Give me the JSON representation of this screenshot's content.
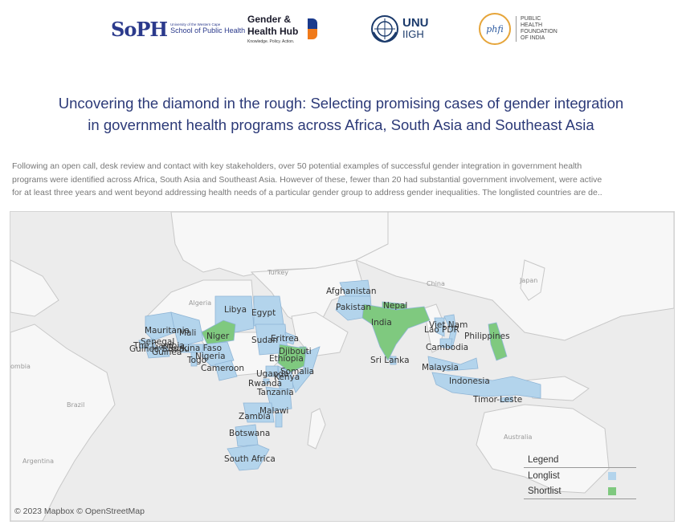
{
  "logos": {
    "soph": {
      "mark": "SoPH",
      "line1": "University of the Western Cape",
      "line2": "School of Public Health"
    },
    "ghh": {
      "line1": "Gender &",
      "line2": "Health Hub",
      "tagline": "Knowledge. Policy. Action."
    },
    "unu": {
      "line1": "UNU",
      "line2": "IIGH"
    },
    "phfi": {
      "mark": "phfi",
      "line1": "PUBLIC",
      "line2": "HEALTH",
      "line3": "FOUNDATION",
      "line4": "OF INDIA"
    }
  },
  "title": {
    "line1": "Uncovering the diamond in the rough: Selecting promising cases of gender integration",
    "line2": "in government health programs across Africa, South Asia and Southeast Asia"
  },
  "description": {
    "line1": "Following an open call, desk review and contact with key stakeholders, over 50 potential examples of successful gender integration in government health",
    "line2": "programs were identified across Africa, South Asia and Southeast Asia. However of these, fewer than 20 had substantial government involvement, were active",
    "line3": "for at least three years and went beyond addressing health needs of a particular gender group to address gender inequalities. The longlisted countries are de.."
  },
  "map": {
    "base_labels": {
      "turkey": "Turkey",
      "algeria": "Algeria",
      "china": "China",
      "japan": "Japan",
      "brazil": "Brazil",
      "argentina": "Argentina",
      "australia": "Australia",
      "ombia": "ombia"
    },
    "countries": {
      "libya": "Libya",
      "egypt": "Egypt",
      "mauritania": "Mauritania",
      "mali": "Mali",
      "niger": "Niger",
      "senegal": "Senegal",
      "the_gambia": "The Gambia",
      "guinea_bissau": "Guinea-Bissau",
      "guinea": "Guinea",
      "burkina_faso": "Burkina Faso",
      "nigeria": "Nigeria",
      "togo": "Togo",
      "cameroon": "Cameroon",
      "sudan": "Sudan",
      "eritrea": "Eritrea",
      "djibouti": "Djibouti",
      "ethiopia": "Ethiopia",
      "somalia": "Somalia",
      "uganda": "Uganda",
      "kenya": "Kenya",
      "rwanda": "Rwanda",
      "tanzania": "Tanzania",
      "malawi": "Malawi",
      "zambia": "Zambia",
      "botswana": "Botswana",
      "south_africa": "South Africa",
      "afghanistan": "Afghanistan",
      "pakistan": "Pakistan",
      "nepal": "Nepal",
      "india": "India",
      "sri_lanka": "Sri Lanka",
      "viet_nam": "Viet Nam",
      "lao_pdr": "Lao PDR",
      "cambodia": "Cambodia",
      "philippines": "Philippines",
      "malaysia": "Malaysia",
      "indonesia": "Indonesia",
      "timor_leste": "Timor-Leste"
    },
    "attribution": "© 2023 Mapbox © OpenStreetMap"
  },
  "legend": {
    "title": "Legend",
    "items": [
      {
        "label": "Longlist",
        "color": "#b3d4ec"
      },
      {
        "label": "Shortlist",
        "color": "#7fc97f"
      }
    ]
  }
}
